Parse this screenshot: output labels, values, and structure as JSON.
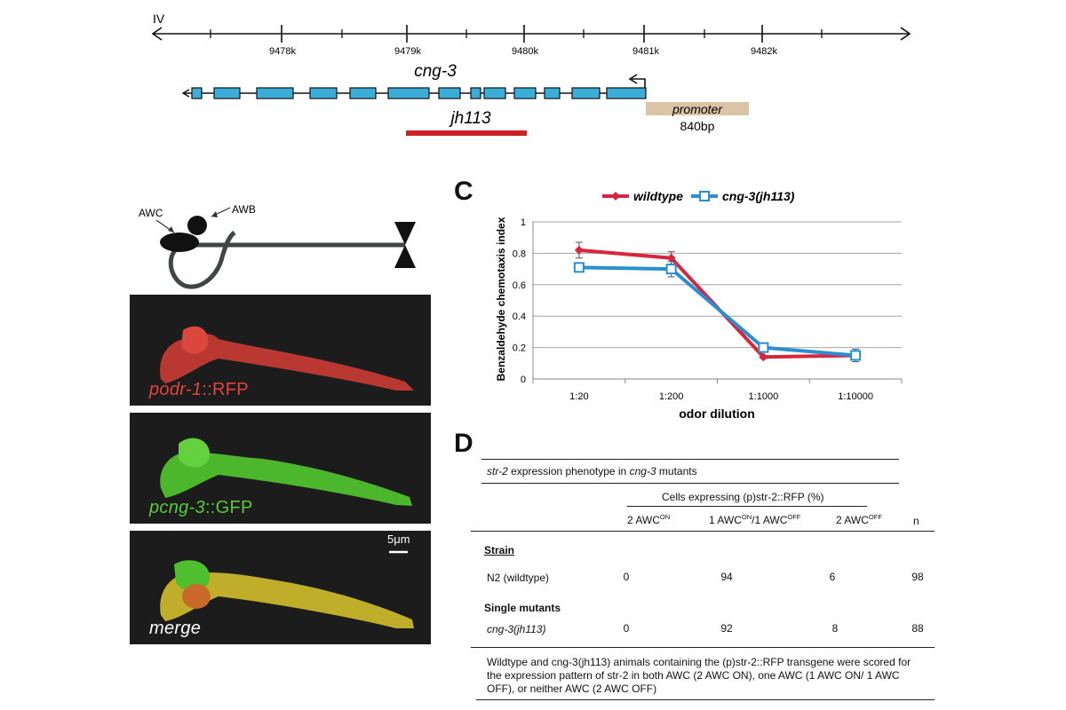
{
  "gene_map": {
    "chromosome": "IV",
    "ticks": [
      "9478k",
      "9479k",
      "9480k",
      "9481k",
      "9482k"
    ],
    "gene_name": "cng-3",
    "allele": "jh113",
    "promoter_label": "promoter",
    "promoter_size": "840bp"
  },
  "panel_b": {
    "neuron_awc": "AWC",
    "neuron_awb": "AWB",
    "scale_bar": "5μm",
    "images": [
      {
        "label_italic": "podr-1",
        "label_rest": "::RFP",
        "color": "#e0433c"
      },
      {
        "label_italic": "pcng-3",
        "label_rest": "::GFP",
        "color": "#55cc33"
      },
      {
        "label_italic": "merge",
        "label_rest": "",
        "color": "#ffffff"
      }
    ]
  },
  "panel_c": {
    "letter": "C"
  },
  "chart_data": {
    "type": "line",
    "categories": [
      "1:20",
      "1:200",
      "1:1000",
      "1:10000"
    ],
    "series": [
      {
        "name": "wildtype",
        "values": [
          0.82,
          0.77,
          0.14,
          0.15
        ],
        "errors": [
          0.05,
          0.04,
          0.01,
          0.03
        ],
        "color": "#d7263d",
        "marker": "diamond"
      },
      {
        "name": "cng-3(jh113)",
        "values": [
          0.71,
          0.7,
          0.2,
          0.15
        ],
        "errors": [
          0.02,
          0.05,
          0.02,
          0.04
        ],
        "color": "#2a8fd0",
        "marker": "square"
      }
    ],
    "xlabel": "odor dilution",
    "ylabel": "Benzaldehyde chemotaxis index",
    "ylim": [
      0,
      1
    ],
    "yticks": [
      "0",
      "0.2",
      "0.4",
      "0.6",
      "0.8",
      "1"
    ],
    "grid": true,
    "legend_position": "top"
  },
  "panel_d": {
    "letter": "D",
    "title_italic": "str-2",
    "title_mid": " expression phenotype in ",
    "title_italic2": "cng-3",
    "title_end": " mutants",
    "group_header": "Cells expressing (p)str-2::RFP (%)",
    "col_1": "2 AWC",
    "col_1_sup": "ON",
    "col_2a": "1 AWC",
    "col_2a_sup": "ON",
    "col_2b": "/1 AWC",
    "col_2b_sup": "OFF",
    "col_3": "2 AWC",
    "col_3_sup": "OFF",
    "col_n": "n",
    "section_strain": "Strain",
    "row_wt": {
      "name": "N2 (wildtype)",
      "v1": "0",
      "v2": "94",
      "v3": "6",
      "n": "98"
    },
    "section_single": "Single mutants",
    "row_mut": {
      "name": "cng-3(jh113)",
      "v1": "0",
      "v2": "92",
      "v3": "8",
      "n": "88"
    },
    "caption": "Wildtype and cng-3(jh113) animals containing the (p)str-2::RFP transgene were scored for the expression pattern of str-2 in both AWC (2 AWC ON), one AWC (1 AWC ON/ 1 AWC OFF), or neither AWC (2 AWC OFF)"
  }
}
